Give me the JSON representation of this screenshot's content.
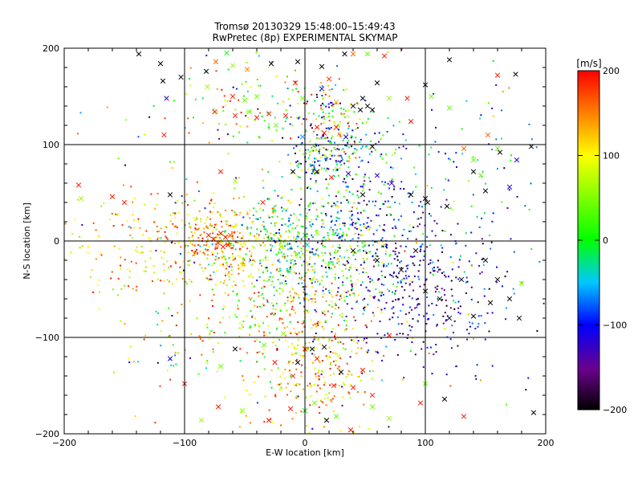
{
  "chart_data": {
    "type": "scatter",
    "title": "Tromsø 20130329 15:48:00–15:49:43",
    "subtitle": "RwPretec (8p) EXPERIMENTAL SKYMAP",
    "xlabel": "E-W location [km]",
    "ylabel": "N-S location [km]",
    "xlim": [
      -200,
      200
    ],
    "ylim": [
      -200,
      200
    ],
    "x_ticks": [
      -200,
      -100,
      0,
      100,
      200
    ],
    "y_ticks": [
      -200,
      -100,
      0,
      100,
      200
    ],
    "grid": true,
    "colorbar": {
      "label": "[m/s]",
      "range": [
        -200,
        200
      ],
      "ticks": [
        200,
        100,
        0,
        -100,
        -200
      ],
      "colors": [
        "#000000",
        "#7a00a0",
        "#0000ff",
        "#00c8ff",
        "#00ff00",
        "#ffff00",
        "#ff8000",
        "#ff0000"
      ]
    },
    "series": [
      {
        "marker": "x",
        "points": [
          [
            -138,
            194,
            -200
          ],
          [
            -120,
            184,
            -200
          ],
          [
            -118,
            166,
            -200
          ],
          [
            -103,
            170,
            -200
          ],
          [
            -82,
            176,
            -200
          ],
          [
            -74,
            186,
            160
          ],
          [
            -65,
            195,
            0
          ],
          [
            -60,
            182,
            60
          ],
          [
            -48,
            178,
            150
          ],
          [
            -28,
            184,
            -200
          ],
          [
            -6,
            186,
            -200
          ],
          [
            14,
            181,
            -200
          ],
          [
            33,
            194,
            -200
          ],
          [
            40,
            194,
            160
          ],
          [
            52,
            194,
            40
          ],
          [
            66,
            192,
            190
          ],
          [
            120,
            188,
            -200
          ],
          [
            160,
            172,
            190
          ],
          [
            175,
            173,
            -200
          ],
          [
            -115,
            148,
            -120
          ],
          [
            -81,
            160,
            60
          ],
          [
            -60,
            150,
            190
          ],
          [
            -50,
            146,
            40
          ],
          [
            -46,
            134,
            40
          ],
          [
            -40,
            150,
            40
          ],
          [
            -8,
            164,
            190
          ],
          [
            -2,
            148,
            40
          ],
          [
            14,
            158,
            -140
          ],
          [
            20,
            168,
            180
          ],
          [
            26,
            144,
            130
          ],
          [
            40,
            140,
            -200
          ],
          [
            46,
            136,
            -200
          ],
          [
            48,
            148,
            -200
          ],
          [
            52,
            140,
            -200
          ],
          [
            56,
            136,
            -200
          ],
          [
            60,
            164,
            -200
          ],
          [
            70,
            148,
            60
          ],
          [
            85,
            148,
            190
          ],
          [
            100,
            162,
            -200
          ],
          [
            105,
            150,
            40
          ],
          [
            -117,
            110,
            190
          ],
          [
            -75,
            134,
            190
          ],
          [
            -58,
            130,
            190
          ],
          [
            -40,
            128,
            190
          ],
          [
            -30,
            132,
            190
          ],
          [
            -24,
            120,
            40
          ],
          [
            -16,
            130,
            190
          ],
          [
            -2,
            108,
            -60
          ],
          [
            10,
            118,
            190
          ],
          [
            16,
            112,
            190
          ],
          [
            26,
            118,
            190
          ],
          [
            34,
            108,
            -120
          ],
          [
            56,
            98,
            -200
          ],
          [
            88,
            124,
            190
          ],
          [
            120,
            138,
            40
          ],
          [
            132,
            96,
            160
          ],
          [
            140,
            84,
            40
          ],
          [
            152,
            110,
            160
          ],
          [
            160,
            96,
            40
          ],
          [
            162,
            92,
            -200
          ],
          [
            176,
            84,
            -120
          ],
          [
            188,
            98,
            -200
          ],
          [
            -188,
            58,
            190
          ],
          [
            -186,
            44,
            60
          ],
          [
            -160,
            46,
            190
          ],
          [
            -150,
            40,
            190
          ],
          [
            -112,
            48,
            -200
          ],
          [
            -70,
            72,
            190
          ],
          [
            -58,
            62,
            60
          ],
          [
            -35,
            40,
            190
          ],
          [
            -10,
            72,
            -200
          ],
          [
            10,
            72,
            -200
          ],
          [
            22,
            66,
            190
          ],
          [
            36,
            70,
            -120
          ],
          [
            48,
            48,
            -200
          ],
          [
            60,
            68,
            -120
          ],
          [
            72,
            60,
            -120
          ],
          [
            88,
            48,
            -200
          ],
          [
            100,
            44,
            -200
          ],
          [
            102,
            40,
            -200
          ],
          [
            118,
            36,
            -200
          ],
          [
            140,
            72,
            -200
          ],
          [
            146,
            68,
            40
          ],
          [
            150,
            52,
            -200
          ],
          [
            170,
            56,
            -120
          ],
          [
            -80,
            6,
            190
          ],
          [
            -76,
            2,
            190
          ],
          [
            -72,
            -2,
            190
          ],
          [
            -70,
            8,
            190
          ],
          [
            -68,
            -6,
            190
          ],
          [
            -66,
            4,
            190
          ],
          [
            -64,
            -4,
            190
          ],
          [
            -62,
            6,
            160
          ],
          [
            -30,
            2,
            40
          ],
          [
            -20,
            -6,
            60
          ],
          [
            0,
            6,
            0
          ],
          [
            2,
            -4,
            -40
          ],
          [
            10,
            8,
            60
          ],
          [
            40,
            -10,
            -200
          ],
          [
            60,
            -20,
            -200
          ],
          [
            80,
            -30,
            -200
          ],
          [
            92,
            -10,
            -200
          ],
          [
            100,
            -52,
            -200
          ],
          [
            112,
            -60,
            -200
          ],
          [
            120,
            -80,
            -200
          ],
          [
            130,
            -40,
            -200
          ],
          [
            150,
            -20,
            -200
          ],
          [
            160,
            -40,
            -200
          ],
          [
            170,
            -60,
            -200
          ],
          [
            178,
            -80,
            -200
          ],
          [
            180,
            -44,
            40
          ],
          [
            154,
            -64,
            -200
          ],
          [
            140,
            -78,
            -200
          ],
          [
            -112,
            -122,
            -120
          ],
          [
            -100,
            -148,
            190
          ],
          [
            -86,
            -186,
            60
          ],
          [
            -70,
            -130,
            40
          ],
          [
            -58,
            -112,
            -200
          ],
          [
            -34,
            -108,
            40
          ],
          [
            -25,
            -126,
            190
          ],
          [
            -18,
            -96,
            60
          ],
          [
            -10,
            -140,
            190
          ],
          [
            -6,
            -126,
            -200
          ],
          [
            0,
            -112,
            190
          ],
          [
            6,
            -112,
            -200
          ],
          [
            10,
            -122,
            190
          ],
          [
            16,
            -110,
            -200
          ],
          [
            24,
            -150,
            190
          ],
          [
            30,
            -136,
            -200
          ],
          [
            40,
            -152,
            190
          ],
          [
            48,
            -134,
            190
          ],
          [
            56,
            -172,
            40
          ],
          [
            70,
            -98,
            190
          ],
          [
            100,
            -148,
            40
          ],
          [
            116,
            -164,
            -200
          ],
          [
            132,
            -182,
            190
          ],
          [
            190,
            -178,
            -200
          ],
          [
            -72,
            -172,
            190
          ],
          [
            -52,
            -176,
            60
          ],
          [
            -30,
            -186,
            190
          ],
          [
            -12,
            -174,
            190
          ],
          [
            0,
            -176,
            0
          ],
          [
            8,
            -168,
            40
          ],
          [
            18,
            -186,
            -200
          ],
          [
            26,
            -182,
            40
          ],
          [
            38,
            -196,
            190
          ],
          [
            56,
            -160,
            190
          ],
          [
            70,
            -184,
            60
          ],
          [
            96,
            -168,
            190
          ]
        ]
      },
      {
        "marker": "dot",
        "clusters": [
          {
            "x": 22,
            "y": 120,
            "sx": 14,
            "sy": 22,
            "n": 140,
            "v": [
              -200,
              190
            ]
          },
          {
            "x": 12,
            "y": 82,
            "sx": 12,
            "sy": 10,
            "n": 90,
            "v": [
              -160,
              120
            ]
          },
          {
            "x": 48,
            "y": 98,
            "sx": 16,
            "sy": 10,
            "n": 50,
            "v": [
              -160,
              40
            ]
          },
          {
            "x": -40,
            "y": 140,
            "sx": 40,
            "sy": 25,
            "n": 90,
            "v": [
              -40,
              200
            ]
          },
          {
            "x": -72,
            "y": 0,
            "sx": 18,
            "sy": 18,
            "n": 200,
            "v": [
              80,
              200
            ]
          },
          {
            "x": 0,
            "y": -5,
            "sx": 38,
            "sy": 28,
            "n": 520,
            "v": [
              -100,
              140
            ]
          },
          {
            "x": -120,
            "y": 0,
            "sx": 35,
            "sy": 30,
            "n": 180,
            "v": [
              40,
              200
            ]
          },
          {
            "x": 40,
            "y": 30,
            "sx": 28,
            "sy": 35,
            "n": 200,
            "v": [
              -200,
              40
            ]
          },
          {
            "x": 95,
            "y": -50,
            "sx": 40,
            "sy": 40,
            "n": 380,
            "v": [
              -200,
              -60
            ]
          },
          {
            "x": 10,
            "y": -120,
            "sx": 25,
            "sy": 45,
            "n": 320,
            "v": [
              60,
              200
            ]
          },
          {
            "x": -40,
            "y": -70,
            "sx": 45,
            "sy": 40,
            "n": 260,
            "v": [
              -40,
              200
            ]
          },
          {
            "x": 130,
            "y": 60,
            "sx": 40,
            "sy": 50,
            "n": 80,
            "v": [
              -120,
              40
            ]
          },
          {
            "x": 0,
            "y": 0,
            "sx": 110,
            "sy": 110,
            "n": 260,
            "v": [
              -200,
              200
            ]
          }
        ]
      }
    ]
  }
}
